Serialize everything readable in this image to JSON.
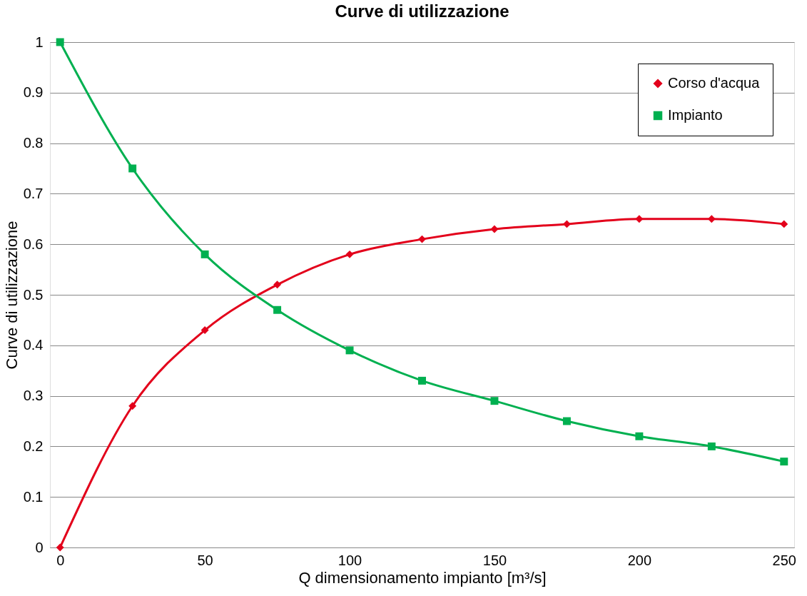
{
  "chart_data": {
    "type": "line",
    "title": "Curve di utilizzazione",
    "xlabel": "Q dimensionamento impianto [m³/s]",
    "ylabel": "Curve di utilizzazione",
    "x": [
      0,
      25,
      50,
      75,
      100,
      125,
      150,
      175,
      200,
      225,
      250
    ],
    "series": [
      {
        "name": "Corso d'acqua",
        "color": "#e3001b",
        "marker": "diamond",
        "values": [
          0,
          0.28,
          0.43,
          0.52,
          0.58,
          0.61,
          0.63,
          0.64,
          0.65,
          0.65,
          0.64
        ]
      },
      {
        "name": "Impianto",
        "color": "#00b050",
        "marker": "square",
        "values": [
          1,
          0.75,
          0.58,
          0.47,
          0.39,
          0.33,
          0.29,
          0.25,
          0.22,
          0.2,
          0.17
        ]
      }
    ],
    "xlim": [
      -3.5,
      253.5
    ],
    "xticks": [
      0,
      50,
      100,
      150,
      200,
      250
    ],
    "ylim": [
      0,
      1
    ],
    "yticks": [
      0,
      0.1,
      0.2,
      0.3,
      0.4,
      0.5,
      0.6,
      0.7,
      0.8,
      0.9,
      1
    ],
    "grid": "y",
    "legend": "top right",
    "line_style": "solid"
  }
}
